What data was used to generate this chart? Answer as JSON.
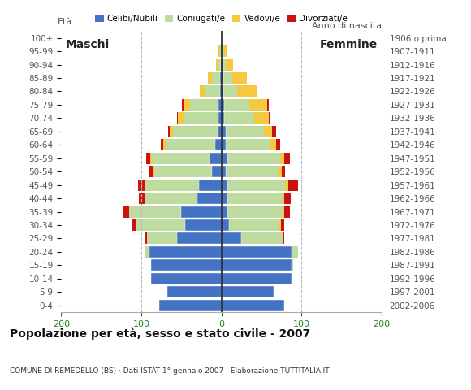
{
  "age_groups": [
    "0-4",
    "5-9",
    "10-14",
    "15-19",
    "20-24",
    "25-29",
    "30-34",
    "35-39",
    "40-44",
    "45-49",
    "50-54",
    "55-59",
    "60-64",
    "65-69",
    "70-74",
    "75-79",
    "80-84",
    "85-89",
    "90-94",
    "95-99",
    "100+"
  ],
  "birth_years": [
    "2002-2006",
    "1997-2001",
    "1992-1996",
    "1987-1991",
    "1982-1986",
    "1977-1981",
    "1972-1976",
    "1967-1971",
    "1962-1966",
    "1957-1961",
    "1952-1956",
    "1947-1951",
    "1942-1946",
    "1937-1941",
    "1932-1936",
    "1927-1931",
    "1922-1926",
    "1917-1921",
    "1912-1916",
    "1907-1911",
    "1906 o prima"
  ],
  "colors": {
    "celibe": "#4472C4",
    "coniugato": "#BEDBA0",
    "vedovo": "#F5C842",
    "divorziato": "#CC1111"
  },
  "maschi": {
    "celibe": [
      78,
      68,
      88,
      88,
      90,
      55,
      45,
      50,
      30,
      28,
      12,
      15,
      8,
      5,
      4,
      4,
      2,
      2,
      1,
      0,
      0
    ],
    "coniugato": [
      0,
      0,
      0,
      0,
      5,
      38,
      62,
      65,
      65,
      68,
      72,
      72,
      62,
      55,
      42,
      35,
      18,
      10,
      4,
      2,
      0
    ],
    "vedovo": [
      0,
      0,
      0,
      0,
      0,
      0,
      0,
      0,
      0,
      0,
      2,
      2,
      3,
      5,
      8,
      8,
      7,
      5,
      2,
      2,
      0
    ],
    "divorziato": [
      0,
      0,
      0,
      0,
      0,
      2,
      5,
      8,
      8,
      8,
      5,
      5,
      3,
      2,
      1,
      2,
      0,
      0,
      0,
      0,
      0
    ]
  },
  "femmine": {
    "celibe": [
      78,
      65,
      88,
      88,
      88,
      25,
      10,
      8,
      8,
      8,
      5,
      8,
      5,
      5,
      3,
      3,
      2,
      2,
      1,
      1,
      0
    ],
    "coniugato": [
      0,
      0,
      0,
      2,
      8,
      52,
      62,
      68,
      68,
      72,
      65,
      65,
      55,
      48,
      38,
      32,
      18,
      12,
      4,
      2,
      0
    ],
    "vedovo": [
      0,
      0,
      0,
      0,
      0,
      0,
      2,
      2,
      3,
      4,
      5,
      5,
      8,
      10,
      18,
      22,
      25,
      18,
      10,
      5,
      2
    ],
    "divorziato": [
      0,
      0,
      0,
      0,
      0,
      2,
      5,
      8,
      8,
      12,
      5,
      8,
      5,
      5,
      2,
      2,
      0,
      0,
      0,
      0,
      0
    ]
  },
  "xlim": 200,
  "xticks": [
    -200,
    -100,
    0,
    100,
    200
  ],
  "xticklabels": [
    "200",
    "100",
    "0",
    "100",
    "200"
  ],
  "title": "Popolazione per età, sesso e stato civile - 2007",
  "subtitle": "COMUNE DI REMEDELLO (BS) · Dati ISTAT 1° gennaio 2007 · Elaborazione TUTTITALIA.IT",
  "ylabel_left": "Età",
  "ylabel_right": "Anno di nascita",
  "label_maschi": "Maschi",
  "label_femmine": "Femmine",
  "legend_labels": [
    "Celibi/Nubili",
    "Coniugati/e",
    "Vedovi/e",
    "Divorziati/e"
  ],
  "background_color": "#ffffff",
  "plot_bg_color": "#ffffff"
}
